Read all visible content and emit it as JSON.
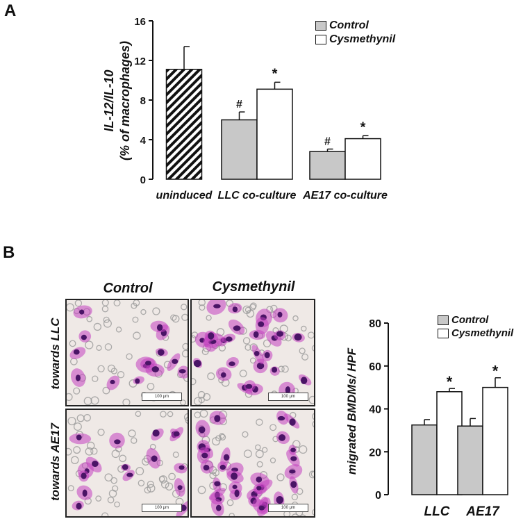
{
  "panel_labels": {
    "a": "A",
    "b": "B"
  },
  "colors": {
    "control": "#c8c8c8",
    "cysmethynil": "#ffffff",
    "outline": "#111111",
    "cell_stain": "#c23fbf",
    "nucleus": "#4a1466"
  },
  "micrographs": {
    "col_titles": [
      "Control",
      "Cysmethynil"
    ],
    "row_titles": [
      "towards LLC",
      "towards AE17"
    ],
    "scale_label": "100 μm"
  },
  "chart_data": [
    {
      "type": "bar",
      "ylabel_line1": "IL-12/IL-10",
      "ylabel_line2": "(% of macrophages)",
      "ylim": [
        0,
        16
      ],
      "yticks": [
        "0",
        "4",
        "8",
        "12",
        "16"
      ],
      "groups": [
        {
          "label": "uninduced",
          "bars": [
            {
              "series": "uninduced",
              "value": 11.1,
              "err": 2.3
            }
          ]
        },
        {
          "label": "LLC co-culture",
          "bars": [
            {
              "series": "Control",
              "value": 6.0,
              "err": 0.8,
              "mark": "#"
            },
            {
              "series": "Cysmethynil",
              "value": 9.1,
              "err": 0.7,
              "mark": "*"
            }
          ]
        },
        {
          "label": "AE17 co-culture",
          "bars": [
            {
              "series": "Control",
              "value": 2.8,
              "err": 0.25,
              "mark": "#"
            },
            {
              "series": "Cysmethynil",
              "value": 4.1,
              "err": 0.3,
              "mark": "*"
            }
          ]
        }
      ],
      "legend": [
        "Control",
        "Cysmethynil"
      ],
      "legend_position": "top-right"
    },
    {
      "type": "bar",
      "ylabel": "migrated BMDMs/ HPF",
      "ylim": [
        0,
        80
      ],
      "yticks": [
        "0",
        "20",
        "40",
        "60",
        "80"
      ],
      "groups": [
        {
          "label": "LLC",
          "bars": [
            {
              "series": "Control",
              "value": 32.5,
              "err": 2.5
            },
            {
              "series": "Cysmethynil",
              "value": 48,
              "err": 1.5,
              "mark": "*"
            }
          ]
        },
        {
          "label": "AE17",
          "bars": [
            {
              "series": "Control",
              "value": 32,
              "err": 3.5
            },
            {
              "series": "Cysmethynil",
              "value": 50,
              "err": 4.5,
              "mark": "*"
            }
          ]
        }
      ],
      "legend": [
        "Control",
        "Cysmethynil"
      ],
      "legend_position": "top-right"
    }
  ]
}
